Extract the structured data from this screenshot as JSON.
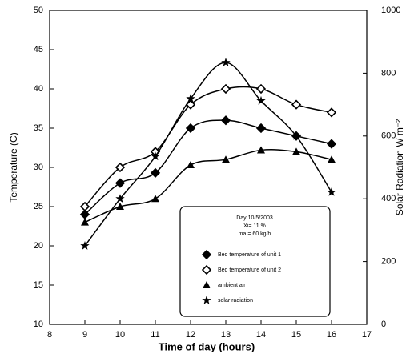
{
  "chart_data": {
    "type": "line",
    "x_label": "Time of day (hours)",
    "y_label": "Temperature (C)",
    "y2_label": "Solar Radiation W m⁻²",
    "x": [
      9,
      10,
      11,
      12,
      13,
      14,
      15,
      16
    ],
    "xlim": [
      8,
      17
    ],
    "xticks": [
      8,
      9,
      10,
      11,
      12,
      13,
      14,
      15,
      16,
      17
    ],
    "ylim": [
      10,
      50
    ],
    "yticks": [
      10,
      15,
      20,
      25,
      30,
      35,
      40,
      45,
      50
    ],
    "y2lim": [
      0,
      1000
    ],
    "y2ticks": [
      0,
      200,
      400,
      600,
      800,
      1000
    ],
    "legend_header": [
      "Day 10/5/2003",
      "Xi= 11 %",
      "ma = 60 kg/h"
    ],
    "series": [
      {
        "name": "Bed temperature of unit 1",
        "marker": "diamond-filled",
        "color": "#000000",
        "values": [
          24,
          28,
          29.3,
          35,
          36,
          35,
          34,
          33
        ]
      },
      {
        "name": "Bed temperature of unit 2",
        "marker": "diamond-open",
        "color": "#000000",
        "values": [
          25,
          30,
          32,
          38,
          40,
          40,
          38,
          37
        ]
      },
      {
        "name": "ambient air",
        "marker": "triangle",
        "color": "#000000",
        "values": [
          23,
          25,
          26,
          30.3,
          31,
          32.2,
          32,
          31
        ]
      },
      {
        "name": "solar radiation",
        "marker": "star",
        "color": "#000000",
        "axis": "y2",
        "values": [
          250,
          400,
          535,
          719,
          834,
          712,
          600,
          421
        ]
      }
    ]
  }
}
